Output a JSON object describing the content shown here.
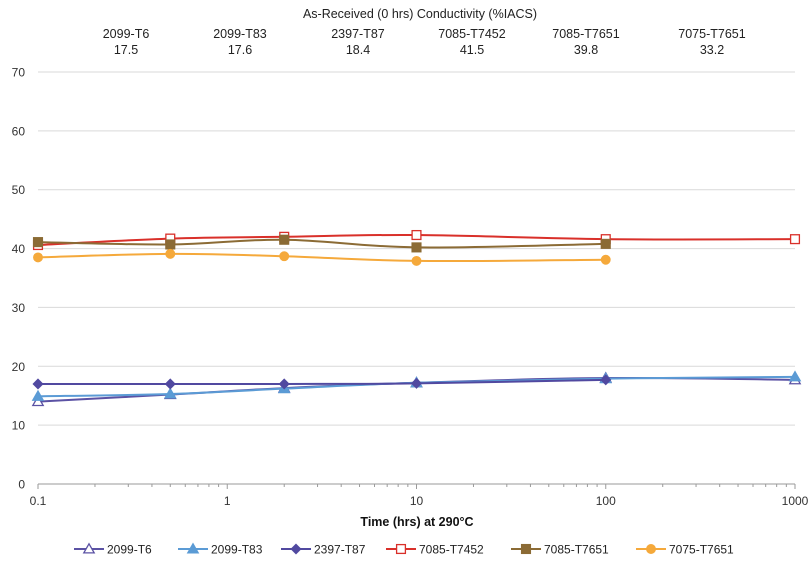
{
  "chart_data": {
    "type": "line",
    "header_title": "As-Received (0 hrs) Conductivity (%IACS)",
    "header_table": [
      {
        "alloy": "2099-T6",
        "value": "17.5"
      },
      {
        "alloy": "2099-T83",
        "value": "17.6"
      },
      {
        "alloy": "2397-T87",
        "value": "18.4"
      },
      {
        "alloy": "7085-T7452",
        "value": "41.5"
      },
      {
        "alloy": "7085-T7651",
        "value": "39.8"
      },
      {
        "alloy": "7075-T7651",
        "value": "33.2"
      }
    ],
    "xlabel": "Time (hrs) at 290°C",
    "ylabel": "",
    "xscale": "log",
    "xlim": [
      0.1,
      1000
    ],
    "ylim": [
      0,
      70
    ],
    "xticks": [
      0.1,
      1,
      10,
      100,
      1000
    ],
    "xtick_labels": [
      "0.1",
      "1",
      "10",
      "100",
      "1000"
    ],
    "yticks": [
      0,
      10,
      20,
      30,
      40,
      50,
      60,
      70
    ],
    "ytick_labels": [
      "0",
      "10",
      "20",
      "30",
      "40",
      "50",
      "60",
      "70"
    ],
    "grid": "horizontal",
    "legend_position": "bottom",
    "series": [
      {
        "name": "2099-T6",
        "color": "#5b52a4",
        "marker": "triangle-open",
        "x": [
          0.1,
          0.5,
          2,
          10,
          100,
          1000
        ],
        "y": [
          14.0,
          15.2,
          16.3,
          17.2,
          18.0,
          17.7
        ]
      },
      {
        "name": "2099-T83",
        "color": "#5b9bd5",
        "marker": "triangle-filled",
        "x": [
          0.1,
          0.5,
          2,
          10,
          100,
          1000
        ],
        "y": [
          14.9,
          15.3,
          16.2,
          17.2,
          17.9,
          18.2
        ]
      },
      {
        "name": "2397-T87",
        "color": "#5149a0",
        "marker": "diamond-filled",
        "x": [
          0.1,
          0.5,
          2,
          10,
          100
        ],
        "y": [
          17.0,
          17.0,
          17.0,
          17.1,
          17.7
        ]
      },
      {
        "name": "7085-T7452",
        "color": "#d9302a",
        "marker": "square-open",
        "x": [
          0.1,
          0.5,
          2,
          10,
          100,
          1000
        ],
        "y": [
          40.6,
          41.7,
          42.0,
          42.3,
          41.6,
          41.6
        ]
      },
      {
        "name": "7085-T7651",
        "color": "#8b6b35",
        "marker": "square-filled",
        "x": [
          0.1,
          0.5,
          2,
          10,
          100
        ],
        "y": [
          41.1,
          40.7,
          41.5,
          40.2,
          40.8
        ]
      },
      {
        "name": "7075-T7651",
        "color": "#f5a93b",
        "marker": "circle-filled",
        "x": [
          0.1,
          0.5,
          2,
          10,
          100
        ],
        "y": [
          38.5,
          39.1,
          38.7,
          37.9,
          38.1
        ]
      }
    ]
  }
}
